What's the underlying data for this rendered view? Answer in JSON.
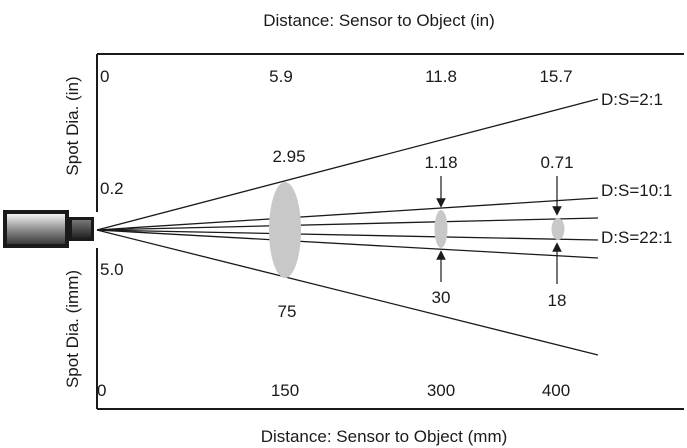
{
  "diagram": {
    "top_axis_title": "Distance: Sensor to Object (in)",
    "bottom_axis_title": "Distance: Sensor to Object (mm)",
    "left_top_label": "Spot Dia. (in)",
    "left_bottom_label": "Spot Dia. (imm)",
    "sensor_in_value": "0.2",
    "sensor_mm_value": "5.0",
    "ticks_in": [
      "0",
      "5.9",
      "11.8",
      "15.7"
    ],
    "ticks_mm": [
      "0",
      "150",
      "300",
      "400"
    ],
    "ratios": [
      "D:S=2:1",
      "D:S=10:1",
      "D:S=22:1"
    ],
    "spot_in": [
      "2.95",
      "1.18",
      "0.71"
    ],
    "spot_mm": [
      "75",
      "30",
      "18"
    ],
    "spot_color": "#c8c8c8"
  }
}
